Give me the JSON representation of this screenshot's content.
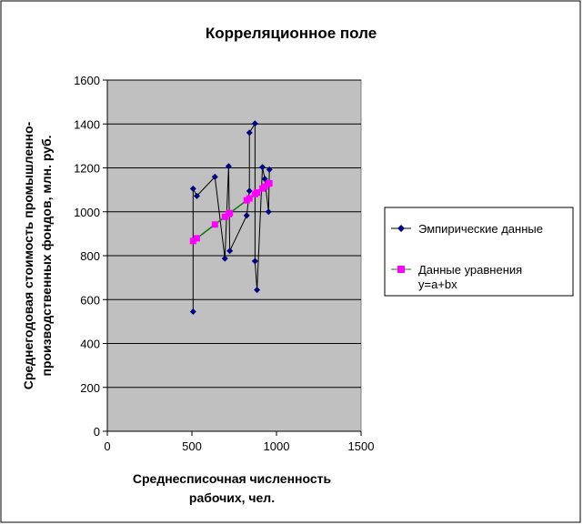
{
  "chart_data": {
    "type": "line",
    "title": "Корреляционное поле",
    "xlabel": [
      "Среднесписочная численность",
      "рабочих, чел."
    ],
    "ylabel": [
      "Среднегодовая стоимость промышленно-",
      "производственных фондов, млн. руб."
    ],
    "xlim": [
      0,
      1500
    ],
    "ylim": [
      0,
      1600
    ],
    "xticks": [
      0,
      500,
      1000,
      1500
    ],
    "yticks": [
      0,
      200,
      400,
      600,
      800,
      1000,
      1200,
      1400,
      1600
    ],
    "grid": "horizontal",
    "legend_position": "right",
    "plot_background": "#C0C0C0",
    "series": [
      {
        "name": "Эмпирические данные",
        "color": "#000080",
        "line_color": "#000000",
        "marker": "diamond",
        "x": [
          507,
          507,
          529,
          636,
          695,
          717,
          724,
          824,
          840,
          840,
          873,
          873,
          885,
          917,
          931,
          953,
          958
        ],
        "y": [
          545,
          1105,
          1072,
          1159,
          787,
          1207,
          822,
          983,
          1095,
          1360,
          1402,
          775,
          644,
          1203,
          1150,
          1000,
          1192
        ]
      },
      {
        "name": "Данные уравнения y=a+bx",
        "legend_lines": [
          "Данные уравнения",
          "y=a+bx"
        ],
        "color": "#FF00FF",
        "line_color": "#008000",
        "marker": "square",
        "x": [
          507,
          529,
          636,
          695,
          717,
          724,
          824,
          840,
          873,
          885,
          917,
          931,
          953,
          958
        ],
        "y": [
          867,
          879,
          942,
          977,
          989,
          994,
          1052,
          1061,
          1081,
          1088,
          1106,
          1115,
          1128,
          1130
        ]
      }
    ]
  }
}
